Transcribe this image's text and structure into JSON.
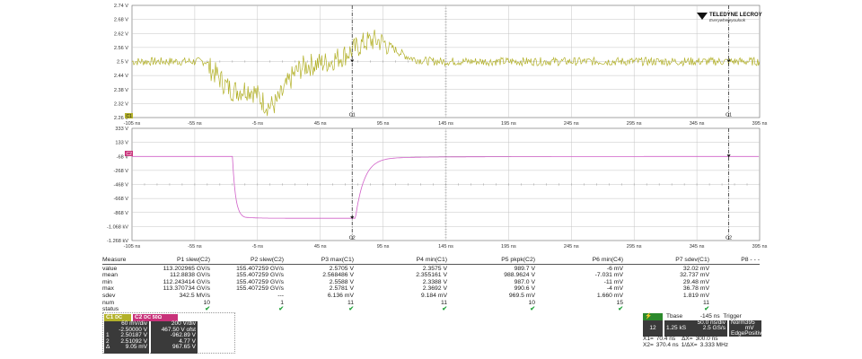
{
  "brand": {
    "line1": "TELEDYNE LECROY",
    "line2": "Everywhereyoulook"
  },
  "colors": {
    "c1": "#b3b12a",
    "c2": "#d060c8",
    "grid": "#9a9a9a",
    "tbase": "#2c8a2c",
    "pink_tab": "#c8327a"
  },
  "x_ticks": [
    "-105 ns",
    "-55 ns",
    "-5 ns",
    "45 ns",
    "95 ns",
    "145 ns",
    "195 ns",
    "245 ns",
    "295 ns",
    "345 ns",
    "395 ns"
  ],
  "top_y_ticks": [
    "2.74 V",
    "2.68 V",
    "2.62 V",
    "2.56 V",
    "2.5 V",
    "2.44 V",
    "2.38 V",
    "2.32 V",
    "2.26 V"
  ],
  "bot_y_ticks": [
    "333 V",
    "133 V",
    "-68 V",
    "-268 V",
    "-468 V",
    "-668 V",
    "-868 V",
    "-1.068 kV",
    "-1.268 kV"
  ],
  "top_marker": "C1",
  "bot_marker": "C2",
  "top_cursor_labels": [
    "C1",
    "C1"
  ],
  "bot_cursor_labels": [
    "C2",
    "C2"
  ],
  "trace1": {
    "baseline": 2.5,
    "dip": 2.39,
    "bump": 2.55
  },
  "trace2": {
    "high": -68,
    "low": -950
  },
  "measure": {
    "headers": [
      "Measure",
      "P1 slew(C2)",
      "P2 slew(C2)",
      "P3 max(C1)",
      "P4 min(C1)",
      "P5 pkpk(C2)",
      "P6 min(C4)",
      "P7 sdev(C1)",
      "P8 - - -"
    ],
    "rows": [
      [
        "value",
        "113.202965 GV/s",
        "155.407259 GV/s",
        "2.5705 V",
        "2.3575 V",
        "989.7 V",
        "-6 mV",
        "32.02 mV",
        ""
      ],
      [
        "mean",
        "112.8838 GV/s",
        "155.407259 GV/s",
        "2.568486 V",
        "2.355161 V",
        "988.9624 V",
        "-7.031 mV",
        "32.737 mV",
        ""
      ],
      [
        "min",
        "112.243414 GV/s",
        "155.407259 GV/s",
        "2.5588 V",
        "2.3388 V",
        "987.0 V",
        "-11 mV",
        "29.48 mV",
        ""
      ],
      [
        "max",
        "113.370734 GV/s",
        "155.407259 GV/s",
        "2.5781 V",
        "2.3692 V",
        "990.6 V",
        "-4 mV",
        "36.78 mV",
        ""
      ],
      [
        "sdev",
        "342.5 MV/s",
        "---",
        "6.136 mV",
        "9.184 mV",
        "969.5 mV",
        "1.660 mV",
        "1.819 mV",
        ""
      ],
      [
        "num",
        "10",
        "1",
        "11",
        "11",
        "10",
        "15",
        "11",
        ""
      ],
      [
        "status",
        "✔",
        "✔",
        "✔",
        "✔",
        "✔",
        "✔",
        "✔",
        ""
      ]
    ]
  },
  "ch1": {
    "tab": "C1",
    "tab_extra": "DC 1M",
    "lines": [
      "60 mV/div",
      "-2.50000 V",
      "2.50187 V",
      "2.51092 V",
      "9.05 mV"
    ],
    "markers": [
      "",
      "",
      "1",
      "2",
      "Δ"
    ]
  },
  "ch2": {
    "tab": "C2",
    "tab_extra": "DC 50Ω",
    "lines": [
      "200 V/div",
      "467.50 V ofst",
      "-962.89 V",
      "4.77 V",
      "967.65 V"
    ]
  },
  "tbase": {
    "tab": "Tbase",
    "tab_val": "-145 ns",
    "tab_trig": "Trigger",
    "bits": "12 Bits",
    "ns_div": "50.0 ns/div",
    "samples": "1.25 kS",
    "rate": "2.5 GS/s",
    "mode": "Norm",
    "edge": "Edge",
    "trig_level": "395 mV",
    "slope": "Positive"
  },
  "cursors": {
    "x1": "X1=",
    "x1_val": "70.4 ns",
    "dx_label": "ΔX=",
    "dx_val": "300.0 ns",
    "x2": "X2=",
    "x2_val": "370.4 ns",
    "inv_label": "1/ΔX=",
    "inv_val": "3.333 MHz"
  }
}
